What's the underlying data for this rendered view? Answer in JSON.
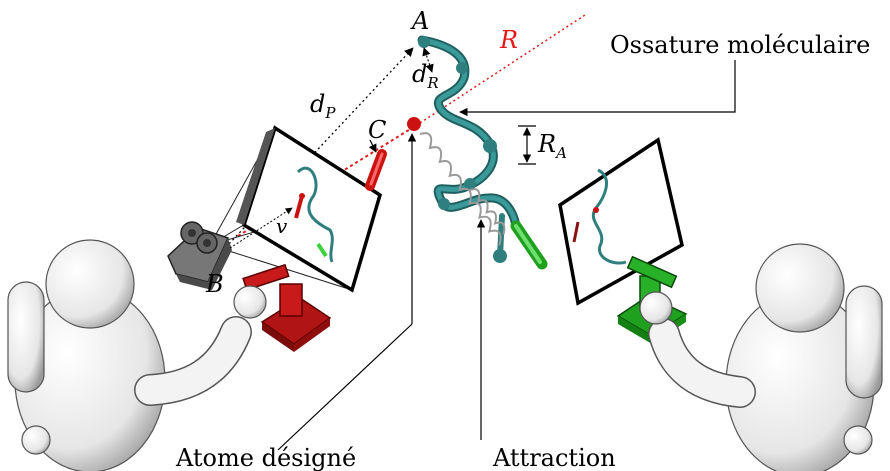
{
  "labels": {
    "point_a": "A",
    "point_b": "B",
    "point_c": "C",
    "ray_r": "R",
    "d_r": {
      "main": "d",
      "sub": "R"
    },
    "d_p": {
      "main": "d",
      "sub": "P"
    },
    "r_a": {
      "main": "R",
      "sub": "A"
    },
    "vector_v": "v",
    "backbone": "Ossature moléculaire",
    "selected_atom": "Atome désigné",
    "attraction": "Attraction"
  },
  "colors": {
    "molecule": "#2f7f7f",
    "atom_red": "#cc1111",
    "robot_red": "#b01414",
    "robot_green": "#1fa01f",
    "probe_green": "#3fd23f",
    "ray_red": "#e41a1a",
    "spring": "#bdbdbd",
    "person": "#f2f2f2"
  },
  "icons": [
    "person-left-icon",
    "person-right-icon",
    "camera-icon",
    "haptic-robot-red-icon",
    "haptic-robot-green-icon",
    "spring-icon"
  ]
}
